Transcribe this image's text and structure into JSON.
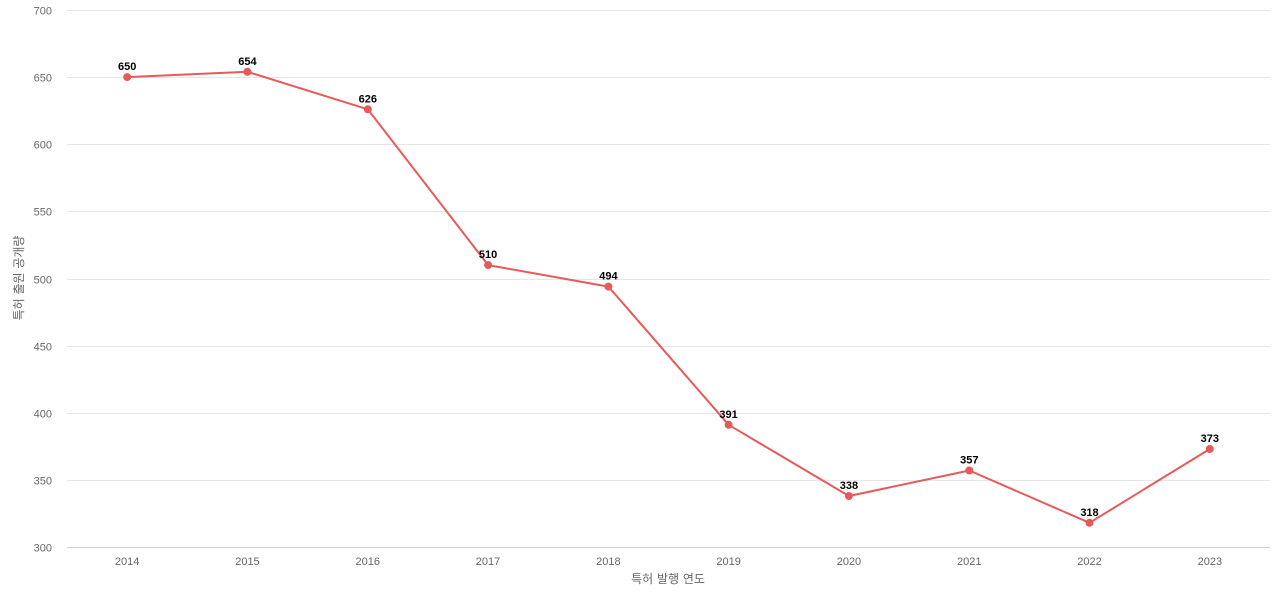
{
  "chart_data": {
    "type": "line",
    "title": "",
    "xlabel": "특허 발행 연도",
    "ylabel": "특허 출원 공개량",
    "categories": [
      "2014",
      "2015",
      "2016",
      "2017",
      "2018",
      "2019",
      "2020",
      "2021",
      "2022",
      "2023"
    ],
    "series": [
      {
        "values": [
          650,
          654,
          626,
          510,
          494,
          391,
          338,
          357,
          318,
          373
        ],
        "color": "#e85a5a"
      }
    ],
    "ylim": [
      300,
      700
    ],
    "yticks": [
      300,
      350,
      400,
      450,
      500,
      550,
      600,
      650,
      700
    ],
    "grid": true,
    "legend": "none",
    "data_labels": true
  }
}
